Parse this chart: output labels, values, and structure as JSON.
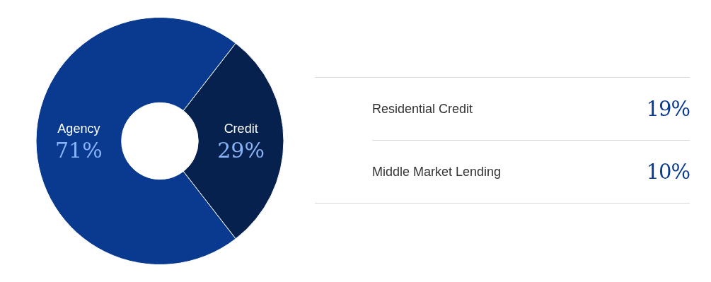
{
  "chart_data": [
    {
      "type": "donut",
      "categories": [
        "Agency",
        "Credit"
      ],
      "values": [
        71,
        29
      ],
      "colors": [
        "#0a3a8f",
        "#06214d"
      ],
      "value_labels": [
        "71%",
        "29%"
      ],
      "legend": false
    },
    {
      "type": "other",
      "annotations": [
        "Residential Credit",
        "19%",
        "Middle Market Lending",
        "10%"
      ]
    }
  ]
}
